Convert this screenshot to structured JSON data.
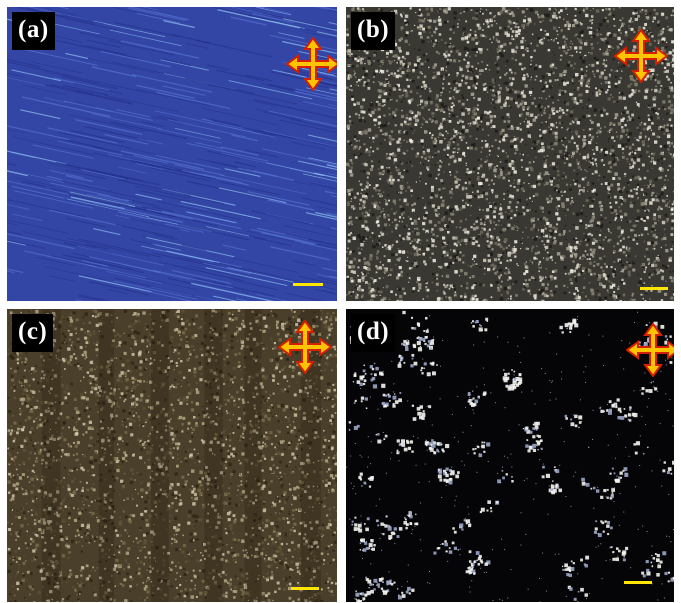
{
  "panels": [
    {
      "id": "a",
      "label": "(a)",
      "texture": "blue-lined",
      "base_color": "#2e3f9c",
      "polarizer_icon": "crossed-polarizers-icon",
      "scalebar_color": "#ffe600"
    },
    {
      "id": "b",
      "label": "(b)",
      "texture": "speckled-bright",
      "base_color": "#3a3832",
      "polarizer_icon": "crossed-polarizers-icon",
      "scalebar_color": "#ffe600"
    },
    {
      "id": "c",
      "label": "(c)",
      "texture": "speckled-dark-brown",
      "base_color": "#4a3f2a",
      "polarizer_icon": "crossed-polarizers-icon",
      "scalebar_color": "#ffe600"
    },
    {
      "id": "d",
      "label": "(d)",
      "texture": "sparse-bright-on-black",
      "base_color": "#050508",
      "polarizer_icon": "crossed-polarizers-icon",
      "scalebar_color": "#ffe600"
    }
  ],
  "icon_colors": {
    "arrow_fill": "#ffc400",
    "arrow_stroke": "#d42000"
  }
}
